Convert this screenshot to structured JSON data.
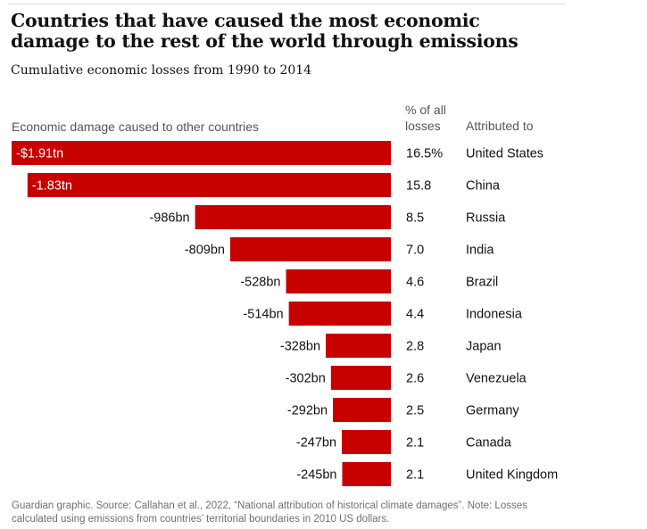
{
  "title": "Countries that have caused the most economic damage to the rest of the world through emissions",
  "subtitle": "Cumulative economic losses from 1990 to 2014",
  "column_headers": {
    "damage": "Economic damage caused to other countries",
    "percent": "% of all losses",
    "attributed": "Attributed to"
  },
  "footer": "Guardian graphic. Source: Callahan et al., 2022, “National attribution of historical climate damages”. Note: Losses calculated using emissions from countries’ territorial boundaries in 2010 US dollars.",
  "colors": {
    "bar": "#c70000",
    "bar_label_inside": "#ffffff",
    "text": "#121212"
  },
  "chart_data": {
    "type": "bar",
    "orientation": "horizontal",
    "value_unit": "US dollars (2010)",
    "categories": [
      "United States",
      "China",
      "Russia",
      "India",
      "Brazil",
      "Indonesia",
      "Japan",
      "Venezuela",
      "Germany",
      "Canada",
      "United Kingdom"
    ],
    "values": [
      -1910000000000,
      -1830000000000,
      -986000000000,
      -809000000000,
      -528000000000,
      -514000000000,
      -328000000000,
      -302000000000,
      -292000000000,
      -247000000000,
      -245000000000
    ],
    "value_labels": [
      "-$1.91tn",
      "-1.83tn",
      "-986bn",
      "-809bn",
      "-528bn",
      "-514bn",
      "-328bn",
      "-302bn",
      "-292bn",
      "-247bn",
      "-245bn"
    ],
    "percent_labels": [
      "16.5%",
      "15.8",
      "8.5",
      "7.0",
      "4.6",
      "4.4",
      "2.8",
      "2.6",
      "2.5",
      "2.1",
      "2.1"
    ],
    "label_inside_bar": [
      true,
      true,
      false,
      false,
      false,
      false,
      false,
      false,
      false,
      false,
      false
    ]
  }
}
